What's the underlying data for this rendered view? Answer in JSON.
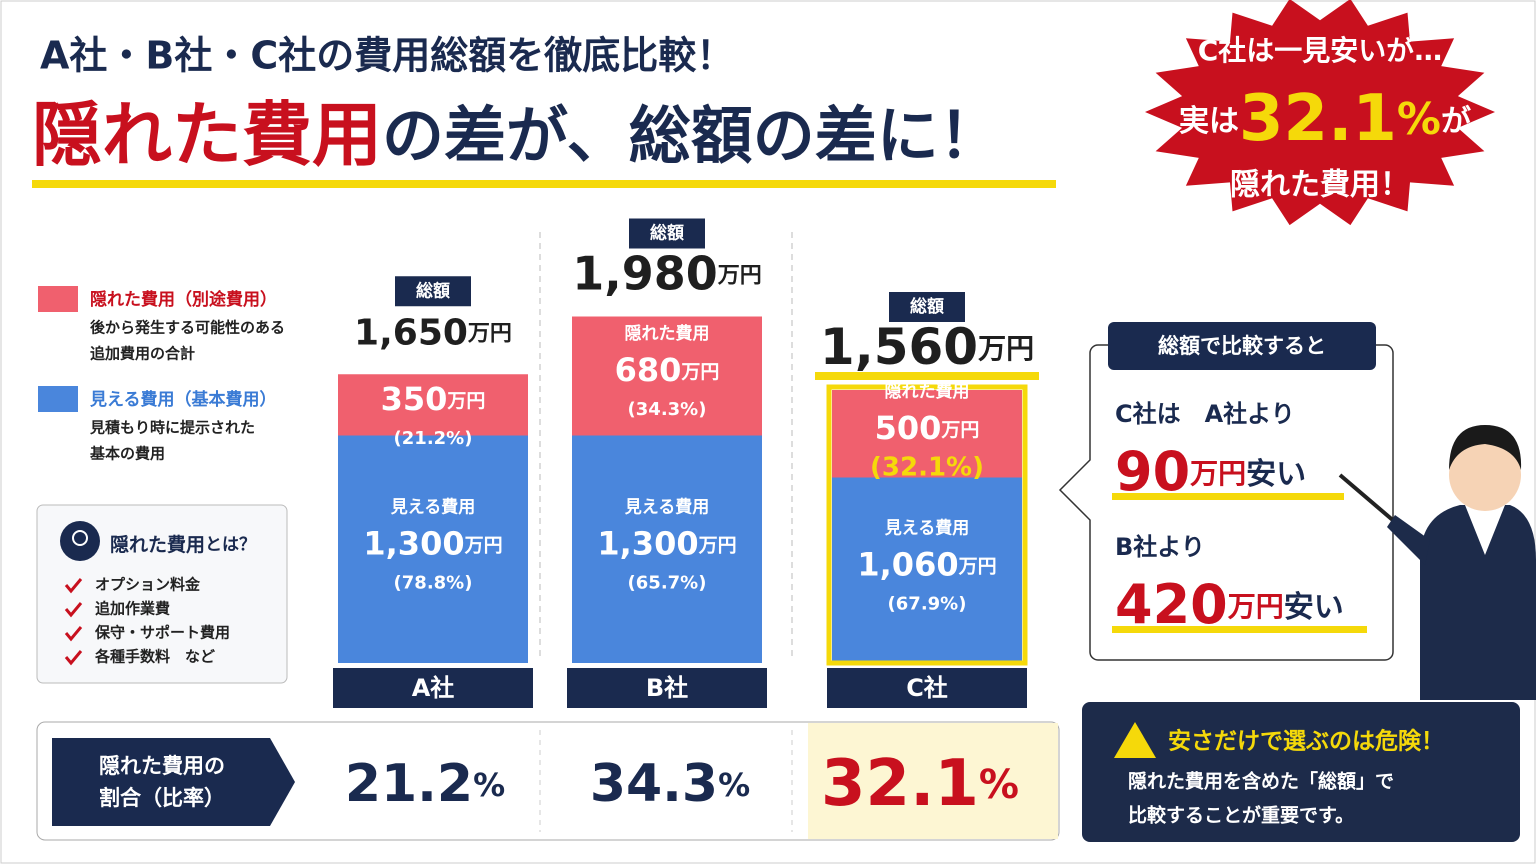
{
  "header": {
    "line1": "A社・B社・C社の費用総額を徹底比較！",
    "line2_red": "隠れた費用",
    "line2_rest": "の差が、総額の差に！"
  },
  "burst": {
    "line1": "C社は一見安いが…",
    "pre": "実は",
    "big": "32.1",
    "big_unit": "%",
    "post": "が",
    "line3": "隠れた費用！"
  },
  "legend_notes": [
    [
      "後から発生する可能性のある",
      "追加費用の合計"
    ],
    [
      "見積もり時に提示された",
      "基本の費用"
    ]
  ],
  "info": {
    "title_red": "隠れた費用",
    "title_rest": "とは？",
    "items": [
      "オプション料金",
      "追加作業費",
      "保守・サポート費用",
      "各種手数料　など"
    ]
  },
  "chart_data": {
    "type": "stacked-bar",
    "categories": [
      "A社",
      "B社",
      "C社"
    ],
    "unit": "万円",
    "highlight": "C社",
    "total_caption": "総額",
    "total_labels": [
      "1,650",
      "1,980",
      "1,560"
    ],
    "series": [
      {
        "name": "隠れた費用（別途費用）",
        "label": "隠れた費用",
        "color": "#f0606e",
        "values": [
          350,
          680,
          500
        ],
        "share_labels": [
          "(21.2%)",
          "(34.3%)",
          "(32.1%)"
        ]
      },
      {
        "name": "見える費用（基本費用）",
        "label": "見える費用",
        "color": "#4a86dc",
        "values": [
          1300,
          1300,
          1060
        ],
        "value_labels": [
          "1,300",
          "1,300",
          "1,060"
        ],
        "share_labels": [
          "(78.8%)",
          "(65.7%)",
          "(67.9%)"
        ]
      }
    ]
  },
  "ratio": {
    "label": [
      "隠れた費用の",
      "割合（比率）"
    ],
    "values": [
      21.2,
      34.3,
      32.1
    ],
    "unit": "%"
  },
  "callout": {
    "title": "総額で比較すると",
    "rows": [
      {
        "lead": "C社は　A社より",
        "amount": 90,
        "unit": "万円",
        "tail": "安い"
      },
      {
        "lead": "B社より",
        "amount": 420,
        "unit": "万円",
        "tail": "安い"
      }
    ]
  },
  "warning": {
    "title": "安さだけで選ぶのは危険！",
    "lines": [
      "隠れた費用を含めた「総額」で",
      "比較することが重要です。"
    ]
  }
}
